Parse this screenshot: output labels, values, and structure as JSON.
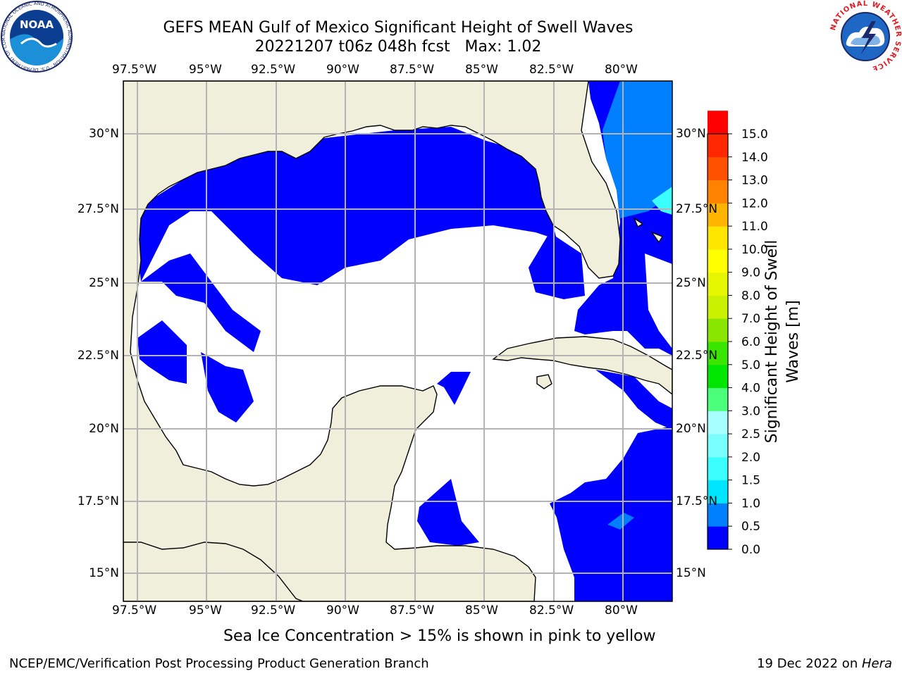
{
  "title_line1": "GEFS MEAN Gulf of Mexico Significant Height of Swell Waves",
  "title_line2": "20221207 t06z 048h fcst   Max: 1.02",
  "map": {
    "lon_ticks": [
      "97.5°W",
      "95°W",
      "92.5°W",
      "90°W",
      "87.5°W",
      "85°W",
      "82.5°W",
      "80°W"
    ],
    "lat_ticks": [
      "30°N",
      "27.5°N",
      "25°N",
      "22.5°N",
      "20°N",
      "17.5°N",
      "15°N"
    ],
    "lon_range": [
      -98,
      -78.2
    ],
    "lat_range": [
      14,
      31.8
    ],
    "land_color": "#efefdc",
    "gridline_color": "#b4b4b4"
  },
  "colorbar": {
    "label": "Significant Height of Swell Waves [m]",
    "tick_labels": [
      "0.0",
      "0.5",
      "1.0",
      "1.5",
      "2.0",
      "2.5",
      "3.0",
      "4.0",
      "5.0",
      "6.0",
      "7.0",
      "8.0",
      "9.0",
      "10.0",
      "11.0",
      "12.0",
      "13.0",
      "14.0",
      "15.0"
    ],
    "colors": [
      "#0000ff",
      "#007fff",
      "#00e5ff",
      "#3bffff",
      "#7affff",
      "#a8ffff",
      "#4bff7a",
      "#00e600",
      "#3ae600",
      "#8ae600",
      "#c8f000",
      "#e6f500",
      "#ffff00",
      "#ffe600",
      "#ffb400",
      "#ff8200",
      "#ff5000",
      "#ff2800",
      "#ff0000"
    ]
  },
  "caption": "Sea Ice Concentration > 15% is shown in pink to yellow",
  "footer": {
    "left": "NCEP/EMC/Verification Post Processing Product Generation Branch",
    "date": "19 Dec 2022 on ",
    "machine": "Hera"
  },
  "logos": {
    "noaa_text": "NOAA",
    "noaa_ring_text": "NATIONAL OCEANIC AND ATMOSPHERIC ADMINISTRATION · U.S. DEPARTMENT OF COMMERCE",
    "nws_ring_text": "NATIONAL WEATHER SERVICE"
  }
}
